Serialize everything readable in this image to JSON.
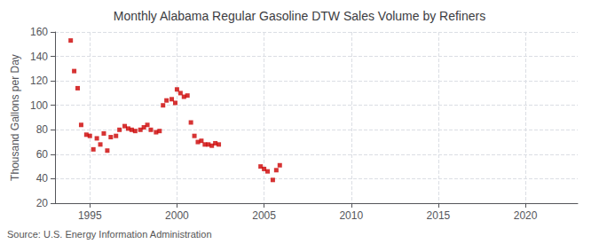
{
  "chart_data": {
    "type": "scatter",
    "title": "Monthly Alabama Regular Gasoline DTW Sales Volume by Refiners",
    "ylabel": "Thousand Gallons per Day",
    "annotation": "Source: U.S. Energy Information Administration",
    "x": [
      1993.9,
      1994.1,
      1994.3,
      1994.5,
      1994.8,
      1995.0,
      1995.2,
      1995.4,
      1995.6,
      1995.8,
      1996.0,
      1996.2,
      1996.5,
      1996.7,
      1997.0,
      1997.2,
      1997.4,
      1997.6,
      1997.9,
      1998.1,
      1998.3,
      1998.5,
      1998.8,
      1999.0,
      1999.2,
      1999.4,
      1999.7,
      1999.9,
      2000.0,
      2000.2,
      2000.4,
      2000.6,
      2000.8,
      2001.0,
      2001.2,
      2001.4,
      2001.6,
      2001.8,
      2002.0,
      2002.2,
      2002.4,
      2004.8,
      2005.0,
      2005.2,
      2005.5,
      2005.7,
      2005.9
    ],
    "values": [
      153,
      128,
      114,
      84,
      76,
      75,
      64,
      73,
      68,
      77,
      63,
      74,
      75,
      80,
      83,
      81,
      80,
      79,
      80,
      82,
      84,
      80,
      78,
      79,
      100,
      104,
      105,
      102,
      113,
      110,
      107,
      108,
      86,
      75,
      70,
      71,
      68,
      68,
      67,
      69,
      68,
      50,
      48,
      46,
      39,
      47,
      51
    ],
    "color": "#cc0000",
    "marker": "square",
    "xlim": [
      1993.0,
      2023.0
    ],
    "xticks": [
      1995,
      2000,
      2005,
      2010,
      2015,
      2020
    ],
    "ylim": [
      20,
      160
    ],
    "yticks": [
      20,
      40,
      60,
      80,
      100,
      120,
      140,
      160
    ],
    "grid": true
  }
}
